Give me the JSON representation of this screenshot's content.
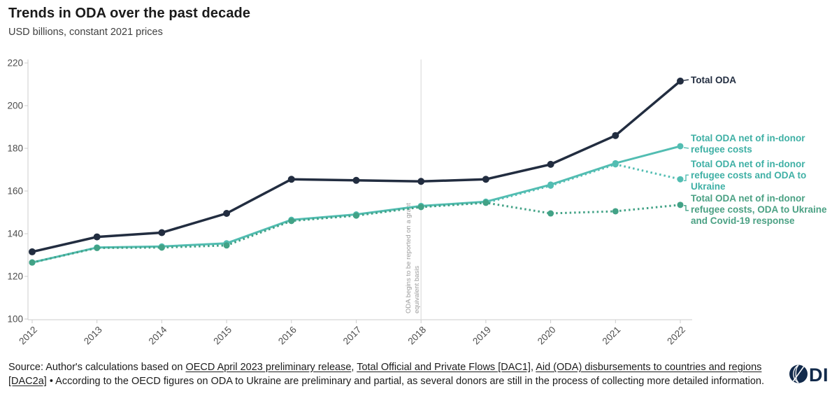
{
  "header": {
    "title": "Trends in ODA over the past decade",
    "subtitle": "USD billions, constant 2021 prices"
  },
  "chart_data": {
    "type": "line",
    "x": [
      2012,
      2013,
      2014,
      2015,
      2016,
      2017,
      2018,
      2019,
      2020,
      2021,
      2022
    ],
    "ylim": [
      100,
      220
    ],
    "yticks": [
      100,
      120,
      140,
      160,
      180,
      200,
      220
    ],
    "grid": false,
    "legend_position": "right-end-labels",
    "series": [
      {
        "name": "total-oda",
        "label": "Total ODA",
        "color": "#222d40",
        "label_color": "#222d40",
        "line_style": "solid",
        "connector": "dash",
        "values": [
          131.5,
          138.5,
          140.5,
          149.5,
          165.5,
          165.0,
          164.5,
          165.5,
          172.5,
          186.0,
          211.5
        ]
      },
      {
        "name": "net-of-refugee-costs",
        "label": "Total ODA net of in-donor refugee costs",
        "color": "#52bdb2",
        "label_color": "#3fb0a5",
        "line_style": "solid",
        "connector": "dash",
        "values": [
          126.5,
          133.5,
          134.0,
          135.5,
          146.5,
          149.0,
          153.0,
          155.0,
          163.0,
          173.0,
          181.0
        ]
      },
      {
        "name": "net-of-refugee-costs-and-ukraine",
        "label": "Total ODA net of in-donor refugee costs and ODA to Ukraine",
        "color": "#52bdb2",
        "label_color": "#3fb0a5",
        "line_style": "dotted",
        "connector": "elbow-up",
        "values": [
          126.5,
          133.5,
          133.8,
          135.0,
          146.0,
          148.5,
          152.5,
          154.5,
          162.5,
          172.5,
          165.5
        ]
      },
      {
        "name": "net-of-refugee-costs-ukraine-covid",
        "label": "Total ODA net of in-donor refugee costs, ODA to Ukraine and Covid-19 response",
        "color": "#42a286",
        "label_color": "#4ba184",
        "line_style": "dotted",
        "connector": "elbow-down",
        "values": [
          126.5,
          133.3,
          133.5,
          134.5,
          146.0,
          148.5,
          152.5,
          154.5,
          149.5,
          150.5,
          153.5
        ]
      }
    ],
    "annotation": {
      "line_year": 2018,
      "lines": [
        "ODA begins to be reported on a grant",
        "equivalent basis"
      ]
    },
    "axis_color": "#cccccc",
    "tick_label_color": "#4d4d4d",
    "annotation_color": "#9b9b9b"
  },
  "footer": {
    "source_segments": [
      {
        "text": "Source: Author's calculations based on ",
        "link": false
      },
      {
        "text": "OECD April 2023 preliminary release",
        "link": true
      },
      {
        "text": ", ",
        "link": false
      },
      {
        "text": "Total Official and Private Flows [DAC1]",
        "link": true
      },
      {
        "text": ", ",
        "link": false
      },
      {
        "text": "Aid (ODA) disbursements to countries and regions [DAC2a]",
        "link": true
      },
      {
        "text": " • According to the OECD figures on ODA to Ukraine are preliminary and partial, as several donors are still in the process of collecting more detailed information.",
        "link": false
      }
    ],
    "logo_letters": "DI",
    "logo_color": "#122a4b"
  }
}
